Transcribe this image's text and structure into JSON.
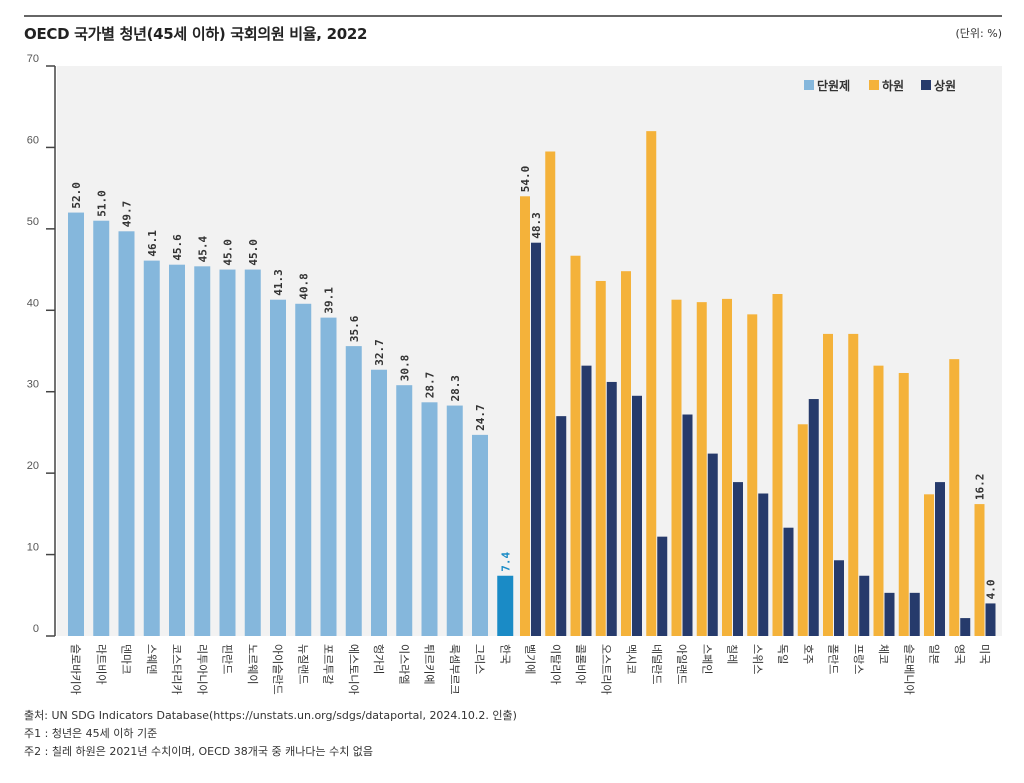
{
  "header": {
    "title": "OECD 국가별 청년(45세 이하) 국회의원 비율, 2022",
    "unit": "(단위: %)"
  },
  "chart_data": {
    "type": "bar",
    "title": "OECD 국가별 청년(45세 이하) 국회의원 비율, 2022",
    "xlabel": "",
    "ylabel": "",
    "unit": "%",
    "ylim": [
      0,
      70
    ],
    "yticks": [
      0,
      10,
      20,
      30,
      40,
      50,
      60,
      70
    ],
    "grid": false,
    "legend_position": "top-right",
    "legend": [
      {
        "key": "unicameral",
        "label": "단원제",
        "color": "#85b7dc"
      },
      {
        "key": "lower",
        "label": "하원",
        "color": "#f4b23a"
      },
      {
        "key": "upper",
        "label": "상원",
        "color": "#263a6b"
      }
    ],
    "highlight_color": "#1a8bc6",
    "unicameral": [
      {
        "country": "슬로바키아",
        "value": 52.0,
        "label": "52.0"
      },
      {
        "country": "라트비아",
        "value": 51.0,
        "label": "51.0"
      },
      {
        "country": "덴마크",
        "value": 49.7,
        "label": "49.7"
      },
      {
        "country": "스웨덴",
        "value": 46.1,
        "label": "46.1"
      },
      {
        "country": "코스타리카",
        "value": 45.6,
        "label": "45.6"
      },
      {
        "country": "리투아니아",
        "value": 45.4,
        "label": "45.4"
      },
      {
        "country": "핀란드",
        "value": 45.0,
        "label": "45.0"
      },
      {
        "country": "노르웨이",
        "value": 45.0,
        "label": "45.0"
      },
      {
        "country": "아이슬란드",
        "value": 41.3,
        "label": "41.3"
      },
      {
        "country": "뉴질랜드",
        "value": 40.8,
        "label": "40.8"
      },
      {
        "country": "포르투갈",
        "value": 39.1,
        "label": "39.1"
      },
      {
        "country": "에스토니아",
        "value": 35.6,
        "label": "35.6"
      },
      {
        "country": "헝가리",
        "value": 32.7,
        "label": "32.7"
      },
      {
        "country": "이스라엘",
        "value": 30.8,
        "label": "30.8"
      },
      {
        "country": "튀르키예",
        "value": 28.7,
        "label": "28.7"
      },
      {
        "country": "룩셈부르크",
        "value": 28.3,
        "label": "28.3"
      },
      {
        "country": "그리스",
        "value": 24.7,
        "label": "24.7"
      },
      {
        "country": "한국",
        "value": 7.4,
        "label": "7.4",
        "highlight": true
      }
    ],
    "bicameral": [
      {
        "country": "벨기에",
        "lower": 54.0,
        "upper": 48.3,
        "lower_label": "54.0",
        "upper_label": "48.3"
      },
      {
        "country": "이탈리아",
        "lower": 59.5,
        "upper": 27.0
      },
      {
        "country": "콜롬비아",
        "lower": 46.7,
        "upper": 33.2
      },
      {
        "country": "오스트리아",
        "lower": 43.6,
        "upper": 31.2
      },
      {
        "country": "멕시코",
        "lower": 44.8,
        "upper": 29.5
      },
      {
        "country": "네덜란드",
        "lower": 62.0,
        "upper": 12.2
      },
      {
        "country": "아일랜드",
        "lower": 41.3,
        "upper": 27.2
      },
      {
        "country": "스페인",
        "lower": 41.0,
        "upper": 22.4
      },
      {
        "country": "칠레",
        "lower": 41.4,
        "upper": 18.9
      },
      {
        "country": "스위스",
        "lower": 39.5,
        "upper": 17.5
      },
      {
        "country": "독일",
        "lower": 42.0,
        "upper": 13.3
      },
      {
        "country": "호주",
        "lower": 26.0,
        "upper": 29.1
      },
      {
        "country": "폴란드",
        "lower": 37.1,
        "upper": 9.3
      },
      {
        "country": "프랑스",
        "lower": 37.1,
        "upper": 7.4
      },
      {
        "country": "체코",
        "lower": 33.2,
        "upper": 5.3
      },
      {
        "country": "슬로베니아",
        "lower": 32.3,
        "upper": 5.3
      },
      {
        "country": "일본",
        "lower": 17.4,
        "upper": 18.9
      },
      {
        "country": "영국",
        "lower": 34.0,
        "upper": 2.2
      },
      {
        "country": "미국",
        "lower": 16.2,
        "upper": 4.0,
        "lower_label": "16.2",
        "upper_label": "4.0"
      }
    ]
  },
  "footer": {
    "source": "출처: UN SDG Indicators Database(https://unstats.un.org/sdgs/dataportal, 2024.10.2. 인출)",
    "note1": "주1 : 청년은 45세 이하 기준",
    "note2": "주2 : 칠레 하원은 2021년 수치이며, OECD 38개국 중 캐나다는 수치 없음"
  }
}
